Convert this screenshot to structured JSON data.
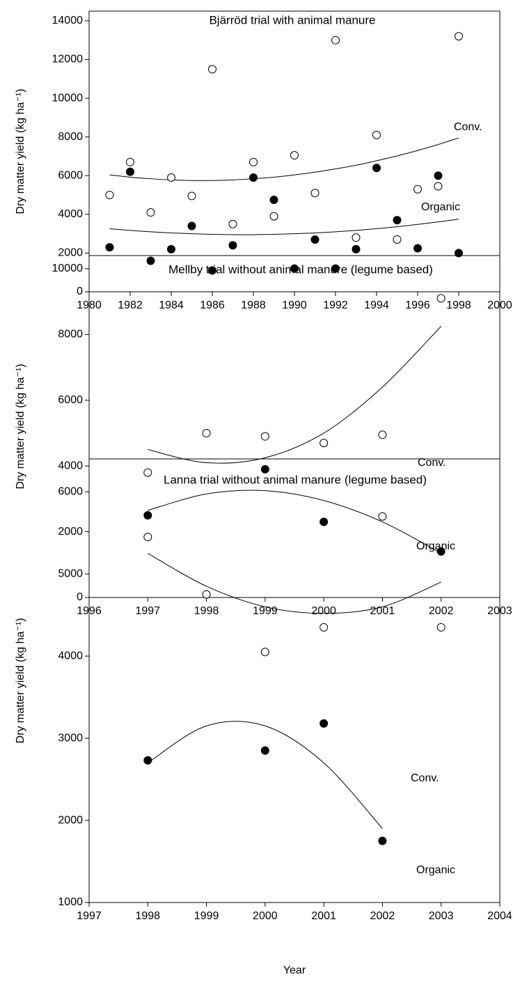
{
  "chart_data": [
    {
      "type": "scatter",
      "title": "Bjärröd trial with animal manure",
      "y_label": "Dry matter yield (kg ha⁻¹)",
      "x": [
        1981,
        1982,
        1983,
        1984,
        1985,
        1986,
        1987,
        1988,
        1989,
        1990,
        1991,
        1992,
        1993,
        1994,
        1995,
        1996,
        1997,
        1998
      ],
      "series": [
        {
          "name": "Conv.",
          "color": "#ffffff",
          "values": [
            5000,
            6700,
            4100,
            5900,
            4950,
            11500,
            3500,
            6700,
            3900,
            7050,
            5100,
            13000,
            2800,
            8100,
            2700,
            5300,
            5450,
            13200
          ],
          "trend": [
            6040,
            5920,
            5840,
            5780,
            5750,
            5750,
            5780,
            5840,
            5920,
            6040,
            6180,
            6350,
            6540,
            6770,
            7020,
            7300,
            7610,
            7950
          ]
        },
        {
          "name": "Organic",
          "color": "#000000",
          "values": [
            2300,
            6200,
            1600,
            2200,
            3400,
            1100,
            2400,
            5900,
            4750,
            1200,
            2700,
            1200,
            2200,
            6400,
            3700,
            2250,
            6000,
            2000
          ],
          "trend": [
            3260,
            3170,
            3100,
            3040,
            3000,
            2970,
            2950,
            2950,
            2970,
            3000,
            3040,
            3100,
            3170,
            3260,
            3360,
            3480,
            3610,
            3750
          ]
        }
      ],
      "xlim": [
        1980,
        2000
      ],
      "xticks": [
        1980,
        1982,
        1984,
        1986,
        1988,
        1990,
        1992,
        1994,
        1996,
        1998,
        2000
      ],
      "ylim": [
        0,
        14500
      ],
      "yticks": [
        0,
        2000,
        4000,
        6000,
        8000,
        10000,
        12000,
        14000
      ]
    },
    {
      "type": "scatter",
      "title": "Mellby trial without animal manure (legume based)",
      "y_label": "Dry matter yield (kg ha⁻¹)",
      "x": [
        1997,
        1998,
        1999,
        2000,
        2001,
        2002
      ],
      "series": [
        {
          "name": "Conv.",
          "color": "#ffffff",
          "values": [
            3800,
            5000,
            4900,
            4700,
            4950,
            9100
          ],
          "trend": [
            4500,
            4100,
            4250,
            5000,
            6400,
            8250
          ]
        },
        {
          "name": "Organic",
          "color": "#000000",
          "values": [
            2500,
            null,
            3900,
            2300,
            null,
            1400
          ],
          "trend": [
            2650,
            3150,
            3250,
            2950,
            2300,
            1350
          ]
        }
      ],
      "xlim": [
        1996,
        2003
      ],
      "xticks": [
        1996,
        1997,
        1998,
        1999,
        2000,
        2001,
        2002,
        2003
      ],
      "ylim": [
        0,
        10400
      ],
      "yticks": [
        0,
        2000,
        4000,
        6000,
        8000,
        10000
      ]
    },
    {
      "type": "scatter",
      "title": "Lanna trial without animal manure (legume based)",
      "y_label": "Dry matter yield (kg ha⁻¹)",
      "x_label": "Year",
      "x": [
        1998,
        1999,
        2000,
        2001,
        2002,
        2003
      ],
      "series": [
        {
          "name": "Conv.",
          "color": "#ffffff",
          "values": [
            5450,
            4750,
            4050,
            4350,
            5700,
            4350
          ],
          "trend": [
            5250,
            4850,
            4600,
            4520,
            4600,
            4900
          ]
        },
        {
          "name": "Organic",
          "color": "#000000",
          "values": [
            2730,
            null,
            2850,
            3180,
            1750,
            null
          ],
          "trend": [
            2700,
            3150,
            3150,
            2700,
            1900,
            null
          ]
        }
      ],
      "xlim": [
        1997,
        2004
      ],
      "xticks": [
        1997,
        1998,
        1999,
        2000,
        2001,
        2002,
        2003,
        2004
      ],
      "ylim": [
        1000,
        6400
      ],
      "yticks": [
        1000,
        2000,
        3000,
        4000,
        5000,
        6000
      ]
    }
  ]
}
